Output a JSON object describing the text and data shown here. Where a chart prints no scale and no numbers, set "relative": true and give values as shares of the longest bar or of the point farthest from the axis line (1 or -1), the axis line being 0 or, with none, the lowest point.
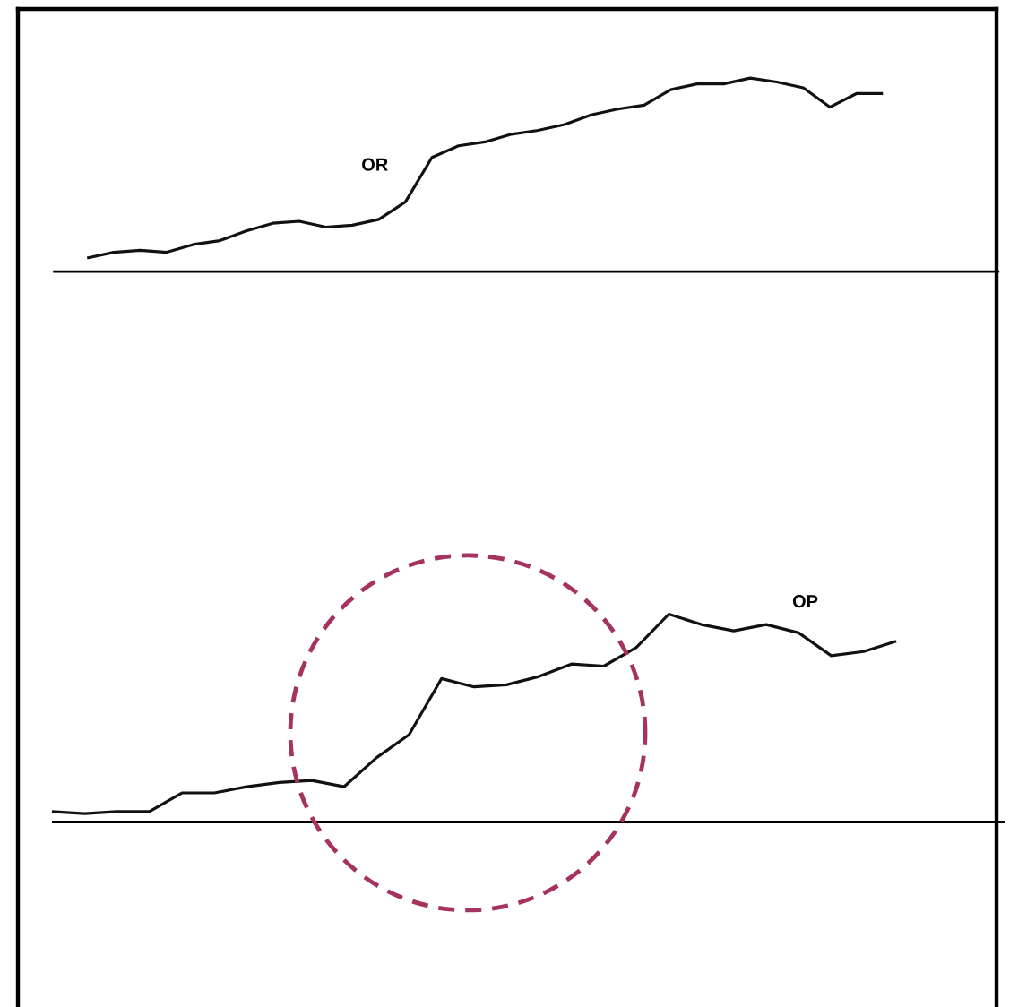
{
  "chart_data": [
    {
      "type": "line",
      "relative": true,
      "categories": [
        null,
        null,
        null,
        null,
        null,
        null,
        null,
        null,
        null,
        null,
        null,
        null,
        null,
        null,
        null,
        null,
        null,
        null,
        null,
        null,
        null,
        null,
        null,
        null,
        null,
        null,
        null,
        null,
        null,
        null,
        null
      ],
      "series": [
        {
          "name": "OR",
          "color": "#111111",
          "values": [
            0.07,
            0.1,
            0.11,
            0.1,
            0.14,
            0.16,
            0.21,
            0.25,
            0.26,
            0.23,
            0.24,
            0.27,
            0.36,
            0.59,
            0.65,
            0.67,
            0.71,
            0.73,
            0.76,
            0.81,
            0.84,
            0.86,
            0.94,
            0.97,
            0.97,
            1,
            0.98,
            0.95,
            0.85,
            0.92,
            0.92
          ]
        }
      ]
    },
    {
      "type": "line",
      "relative": true,
      "categories": [
        null,
        null,
        null,
        null,
        null,
        null,
        null,
        null,
        null,
        null,
        null,
        null,
        null,
        null,
        null,
        null,
        null,
        null,
        null,
        null,
        null,
        null,
        null,
        null,
        null,
        null,
        null
      ],
      "series": [
        {
          "name": "OP",
          "color": "#111111",
          "values": [
            0.05,
            0.04,
            0.05,
            0.05,
            0.14,
            0.14,
            0.17,
            0.19,
            0.2,
            0.17,
            0.31,
            0.42,
            0.69,
            0.65,
            0.66,
            0.7,
            0.76,
            0.75,
            0.84,
            1,
            0.95,
            0.92,
            0.95,
            0.91,
            0.8,
            0.82,
            0.87
          ]
        }
      ]
    }
  ]
}
